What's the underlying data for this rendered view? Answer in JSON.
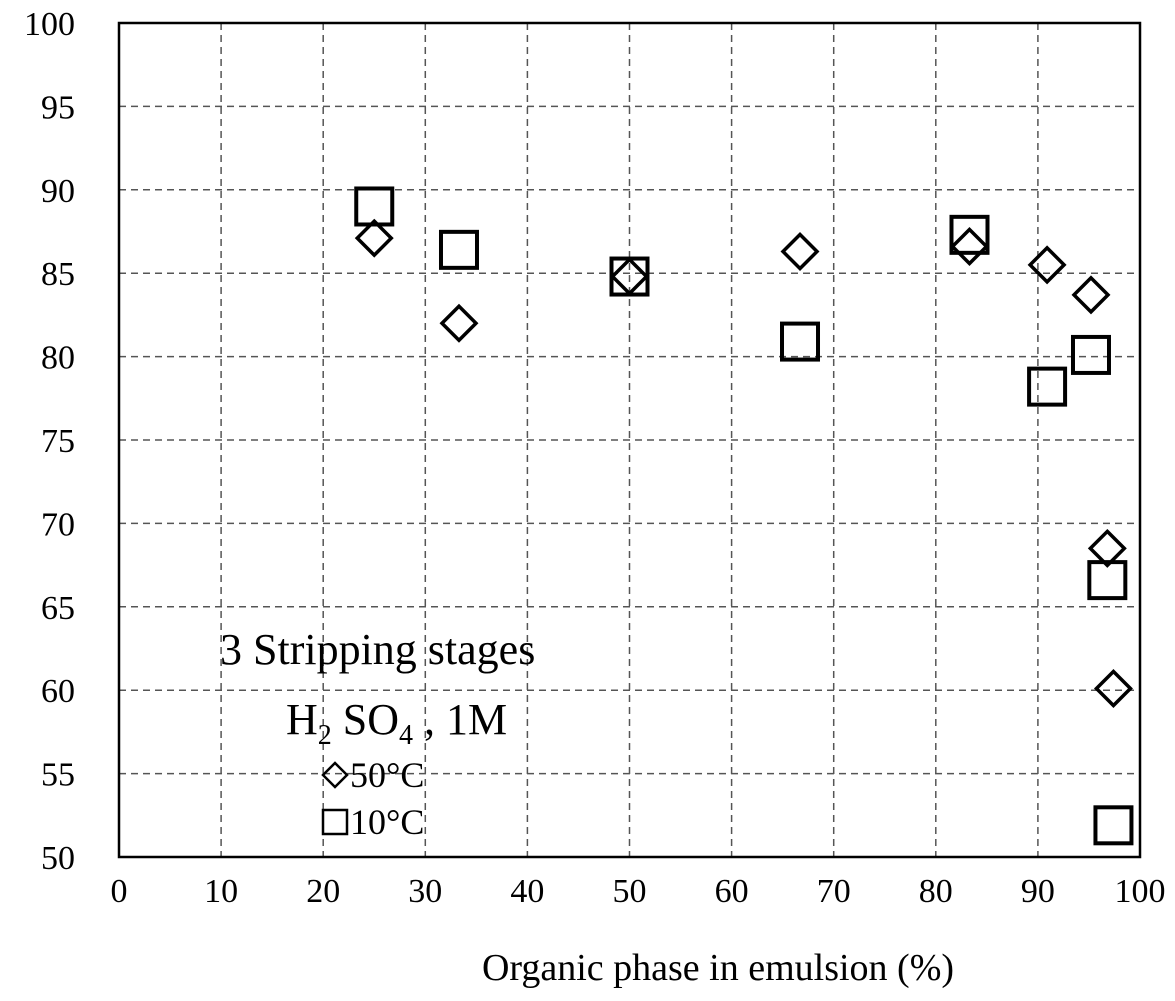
{
  "chart_data": {
    "type": "scatter",
    "title": "",
    "xlabel": "Organic phase in emulsion (%)",
    "ylabel": "",
    "xlim": [
      0,
      100
    ],
    "ylim": [
      50,
      100
    ],
    "xticks": [
      0,
      10,
      20,
      30,
      40,
      50,
      60,
      70,
      80,
      90,
      100
    ],
    "yticks": [
      50,
      55,
      60,
      65,
      70,
      75,
      80,
      85,
      90,
      95,
      100
    ],
    "grid": true,
    "annotation": {
      "line1": "3 Stripping stages",
      "line2_parts": [
        "H",
        "2",
        " SO",
        "4",
        " , 1M"
      ]
    },
    "legend_position": "bottom-left",
    "series": [
      {
        "name": "50°C",
        "marker": "diamond",
        "color": "#000000",
        "x": [
          25,
          33.3,
          50,
          66.7,
          83.3,
          90.9,
          95.2,
          96.8,
          97.4
        ],
        "y": [
          87.1,
          82.0,
          84.8,
          86.3,
          86.6,
          85.5,
          83.7,
          68.5,
          60.1
        ]
      },
      {
        "name": "10°C",
        "marker": "square",
        "color": "#000000",
        "x": [
          25,
          33.3,
          50,
          66.7,
          83.3,
          90.9,
          95.2,
          96.8,
          97.4
        ],
        "y": [
          89.0,
          86.4,
          84.8,
          80.9,
          87.3,
          78.2,
          80.1,
          66.6,
          51.9
        ]
      }
    ]
  }
}
